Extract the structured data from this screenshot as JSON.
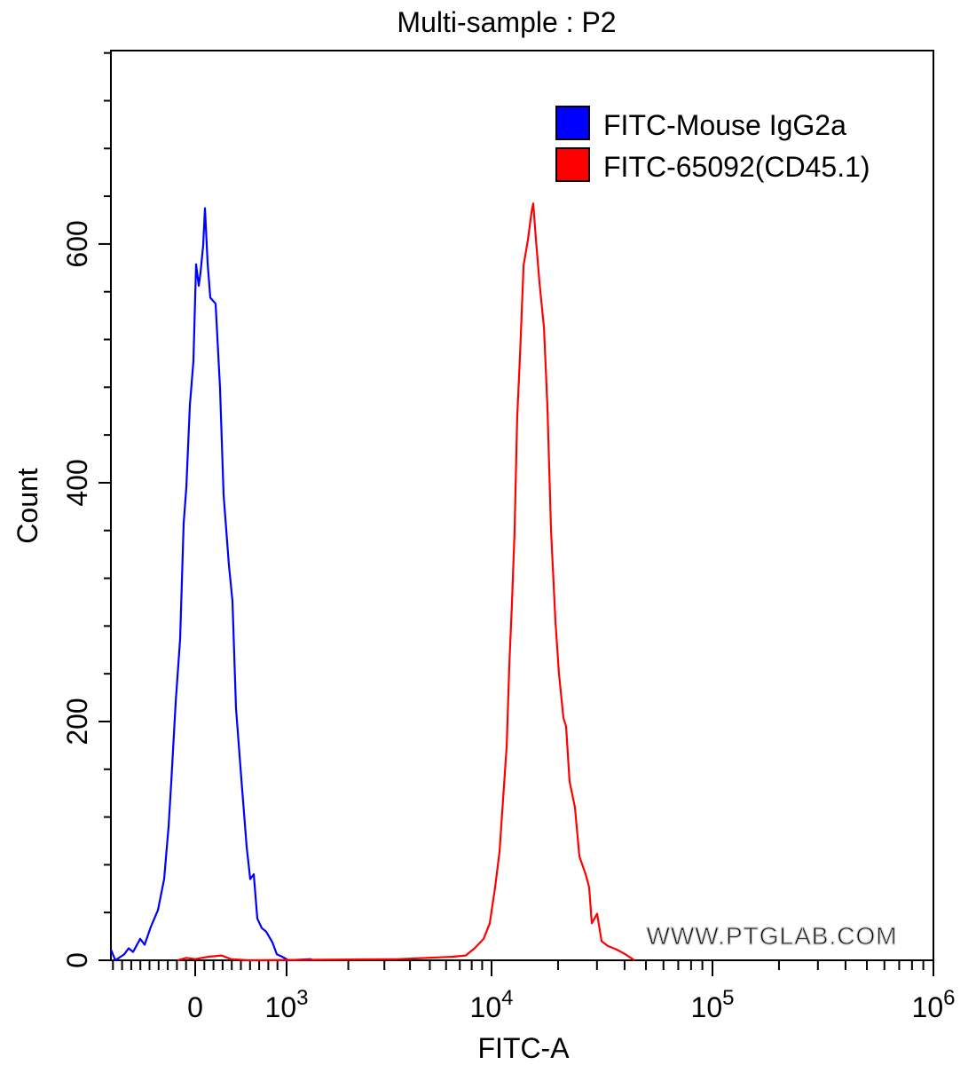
{
  "chart_data": {
    "type": "line",
    "title": "Multi-sample : P2",
    "xlabel": "FITC-A",
    "ylabel": "Count",
    "x_scale": "biexponential",
    "xlim": [
      -920,
      1000000
    ],
    "ylim": [
      0,
      762
    ],
    "x_ticks": [
      {
        "value": 0,
        "label": "0"
      },
      {
        "value": 1000,
        "base": "10",
        "exp": "3"
      },
      {
        "value": 10000,
        "base": "10",
        "exp": "4"
      },
      {
        "value": 100000,
        "base": "10",
        "exp": "5"
      },
      {
        "value": 1000000,
        "base": "10",
        "exp": "6"
      }
    ],
    "y_ticks": [
      0,
      200,
      400,
      600
    ],
    "grid": false,
    "legend_position": "top-right",
    "watermark": "WWW.PTGLAB.COM",
    "series": [
      {
        "name": "FITC-Mouse IgG2a",
        "color": "#0000ff",
        "points": [
          [
            -922,
            9
          ],
          [
            -874,
            0
          ],
          [
            -777,
            5
          ],
          [
            -728,
            10
          ],
          [
            -680,
            7
          ],
          [
            -602,
            18
          ],
          [
            -553,
            13
          ],
          [
            -485,
            28
          ],
          [
            -408,
            42
          ],
          [
            -340,
            68
          ],
          [
            -291,
            112
          ],
          [
            -262,
            149
          ],
          [
            -214,
            216
          ],
          [
            -165,
            269
          ],
          [
            -126,
            366
          ],
          [
            -97,
            396
          ],
          [
            -58,
            465
          ],
          [
            -19,
            502
          ],
          [
            10,
            583
          ],
          [
            39,
            565
          ],
          [
            58,
            576
          ],
          [
            87,
            599
          ],
          [
            107,
            630
          ],
          [
            136,
            584
          ],
          [
            165,
            555
          ],
          [
            223,
            550
          ],
          [
            272,
            479
          ],
          [
            311,
            390
          ],
          [
            369,
            331
          ],
          [
            408,
            301
          ],
          [
            447,
            211
          ],
          [
            505,
            152
          ],
          [
            563,
            95
          ],
          [
            602,
            68
          ],
          [
            641,
            72
          ],
          [
            680,
            35
          ],
          [
            728,
            27
          ],
          [
            777,
            24
          ],
          [
            845,
            15
          ],
          [
            893,
            5
          ],
          [
            951,
            3
          ],
          [
            1020,
            0
          ],
          [
            1310,
            1
          ],
          [
            1350,
            0
          ]
        ]
      },
      {
        "name": "FITC-65092(CD45.1)",
        "color": "#ff0000",
        "points": [
          [
            -194,
            0
          ],
          [
            -97,
            2
          ],
          [
            0,
            1
          ],
          [
            146,
            3
          ],
          [
            291,
            4
          ],
          [
            388,
            1
          ],
          [
            583,
            0
          ],
          [
            3548,
            1
          ],
          [
            6457,
            3
          ],
          [
            7480,
            4
          ],
          [
            8270,
            10
          ],
          [
            9150,
            18
          ],
          [
            9800,
            31
          ],
          [
            10380,
            61
          ],
          [
            10870,
            91
          ],
          [
            11280,
            135
          ],
          [
            11710,
            180
          ],
          [
            12030,
            247
          ],
          [
            12370,
            299
          ],
          [
            12710,
            358
          ],
          [
            13060,
            455
          ],
          [
            13450,
            507
          ],
          [
            13960,
            582
          ],
          [
            14620,
            604
          ],
          [
            15170,
            627
          ],
          [
            15450,
            634
          ],
          [
            15880,
            604
          ],
          [
            16490,
            567
          ],
          [
            17270,
            530
          ],
          [
            17910,
            463
          ],
          [
            18590,
            359
          ],
          [
            19460,
            284
          ],
          [
            20200,
            240
          ],
          [
            21150,
            203
          ],
          [
            21740,
            196
          ],
          [
            22550,
            150
          ],
          [
            23850,
            128
          ],
          [
            24980,
            87
          ],
          [
            26670,
            72
          ],
          [
            27660,
            61
          ],
          [
            28430,
            31
          ],
          [
            30060,
            39
          ],
          [
            31480,
            16
          ],
          [
            33590,
            12
          ],
          [
            36820,
            9
          ],
          [
            40370,
            5
          ],
          [
            44320,
            0
          ]
        ]
      }
    ]
  }
}
